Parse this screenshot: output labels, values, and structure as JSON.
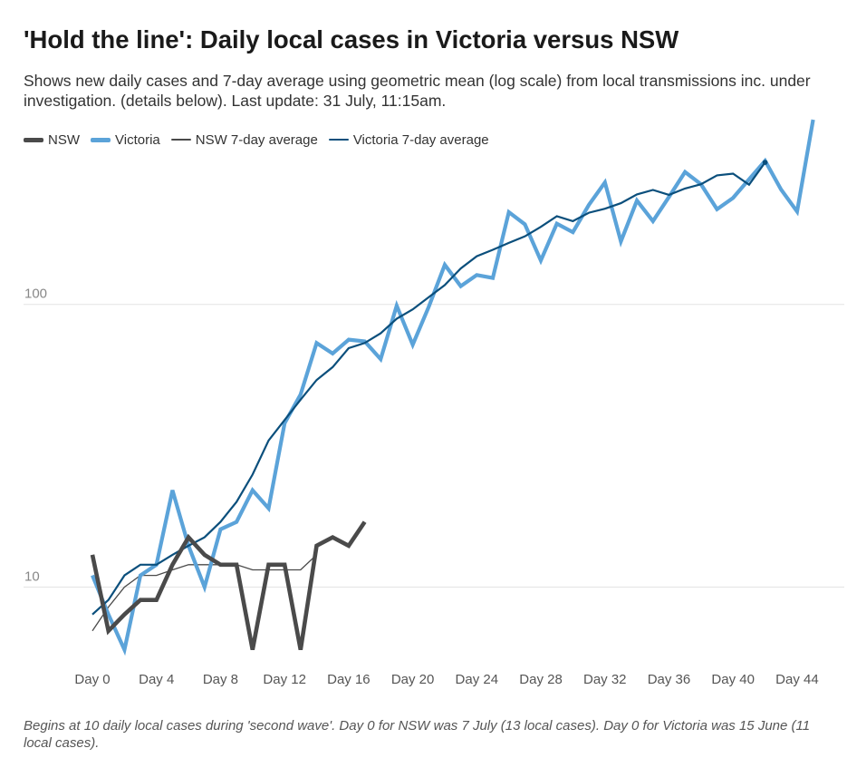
{
  "title": "'Hold the line': Daily local cases in Victoria versus NSW",
  "subtitle": "Shows new daily cases and 7-day average using geometric mean (log scale) from local transmissions inc. under investigation. (details below). Last update: 31 July, 11:15am.",
  "note": "Begins at 10 daily local cases during 'second wave'. Day 0 for NSW was 7 July (13 local cases). Day 0 for Victoria was 15 June (11 local cases).",
  "colors": {
    "nsw": "#4a4a4a",
    "victoria": "#5ba3d9",
    "nsw_avg": "#4a4a4a",
    "victoria_avg": "#0b4f7c",
    "grid": "#e3e3e3"
  },
  "chart_data": {
    "type": "line",
    "title": "'Hold the line': Daily local cases in Victoria versus NSW",
    "xlabel": "",
    "ylabel": "",
    "yscale": "log",
    "xlim": [
      -1,
      46
    ],
    "ylim": [
      5.2,
      340
    ],
    "x_ticks": [
      0,
      4,
      8,
      12,
      16,
      20,
      24,
      28,
      32,
      36,
      40,
      44
    ],
    "x_tick_labels": [
      "Day 0",
      "Day 4",
      "Day 8",
      "Day 12",
      "Day 16",
      "Day 20",
      "Day 24",
      "Day 28",
      "Day 32",
      "Day 36",
      "Day 40",
      "Day 44"
    ],
    "y_ticks": [
      10,
      100
    ],
    "y_tick_labels": [
      "10",
      "100"
    ],
    "grid": true,
    "legend_position": "top-left",
    "series": [
      {
        "name": "NSW",
        "key": "nsw",
        "style": "thick",
        "x": [
          0,
          1,
          2,
          3,
          4,
          5,
          6,
          7,
          8,
          9,
          10,
          11,
          12,
          13,
          14,
          15,
          16,
          17
        ],
        "values": [
          13,
          7,
          8,
          9,
          9,
          12,
          15,
          13,
          12,
          12,
          6,
          12,
          12,
          6,
          14,
          15,
          14,
          17
        ]
      },
      {
        "name": "Victoria",
        "key": "victoria",
        "style": "thick",
        "x": [
          0,
          1,
          2,
          3,
          4,
          5,
          6,
          7,
          8,
          9,
          10,
          11,
          12,
          13,
          14,
          15,
          16,
          17,
          18,
          19,
          20,
          21,
          22,
          23,
          24,
          25,
          26,
          27,
          28,
          29,
          30,
          31,
          32,
          33,
          34,
          35,
          36,
          37,
          38,
          39,
          40,
          41,
          42,
          43,
          44,
          45
        ],
        "values": [
          11,
          8,
          6,
          11,
          12,
          22,
          14,
          10,
          16,
          17,
          22,
          19,
          38,
          48,
          73,
          67,
          75,
          74,
          64,
          99,
          72,
          98,
          138,
          116,
          127,
          124,
          212,
          192,
          143,
          193,
          180,
          225,
          270,
          167,
          233,
          197,
          240,
          294,
          266,
          217,
          238,
          277,
          322,
          255,
          213,
          450
        ]
      },
      {
        "name": "NSW 7-day average",
        "key": "nsw_avg",
        "style": "thin",
        "x": [
          0,
          1,
          2,
          3,
          4,
          5,
          6,
          7,
          8,
          9,
          10,
          11,
          12,
          13,
          14
        ],
        "values": [
          7,
          8.5,
          10,
          11,
          11,
          11.5,
          12,
          12,
          12,
          12,
          11.5,
          11.5,
          11.5,
          11.5,
          13
        ]
      },
      {
        "name": "Victoria 7-day average",
        "key": "victoria_avg",
        "style": "medium",
        "x": [
          0,
          1,
          2,
          3,
          4,
          5,
          6,
          7,
          8,
          9,
          10,
          11,
          12,
          13,
          14,
          15,
          16,
          17,
          18,
          19,
          20,
          21,
          22,
          23,
          24,
          25,
          26,
          27,
          28,
          29,
          30,
          31,
          32,
          33,
          34,
          35,
          36,
          37,
          38,
          39,
          40,
          41,
          42
        ],
        "values": [
          8,
          9,
          11,
          12,
          12,
          13,
          14,
          15,
          17,
          20,
          25,
          33,
          39,
          46,
          54,
          60,
          70,
          73,
          79,
          89,
          96,
          106,
          117,
          134,
          148,
          156,
          165,
          174,
          188,
          205,
          197,
          211,
          218,
          228,
          245,
          254,
          244,
          257,
          266,
          286,
          290,
          265,
          318
        ]
      }
    ],
    "annotations": []
  }
}
